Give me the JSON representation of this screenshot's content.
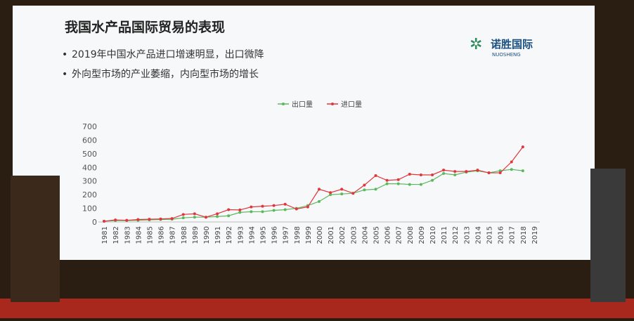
{
  "slide": {
    "title": "我国水产品国际贸易的表现",
    "bullets": [
      "2019年中国水产品进口增速明显，出口微降",
      "外向型市场的产业萎缩，内向型市场的增长"
    ],
    "logo": "诺胜国际",
    "logo_sub": "NUOSHENG"
  },
  "chart_data": {
    "type": "line",
    "categories": [
      "1981",
      "1982",
      "1983",
      "1984",
      "1985",
      "1986",
      "1987",
      "1988",
      "1989",
      "1990",
      "1991",
      "1992",
      "1993",
      "1994",
      "1995",
      "1996",
      "1997",
      "1998",
      "1999",
      "2000",
      "2001",
      "2002",
      "2003",
      "2004",
      "2005",
      "2006",
      "2007",
      "2008",
      "2009",
      "2010",
      "2011",
      "2012",
      "2013",
      "2014",
      "2015",
      "2016",
      "2017",
      "2018",
      "2019"
    ],
    "series": [
      {
        "name": "出口量",
        "color": "#5cb85c",
        "values": [
          5,
          10,
          10,
          12,
          15,
          18,
          20,
          30,
          35,
          35,
          40,
          45,
          70,
          75,
          75,
          85,
          90,
          100,
          120,
          150,
          200,
          205,
          210,
          235,
          240,
          280,
          280,
          275,
          275,
          305,
          355,
          345,
          365,
          375,
          360,
          375,
          385,
          375,
          null
        ]
      },
      {
        "name": "进口量",
        "color": "#e0363c",
        "values": [
          5,
          15,
          12,
          18,
          20,
          22,
          25,
          55,
          60,
          35,
          60,
          90,
          88,
          110,
          115,
          120,
          130,
          95,
          110,
          240,
          215,
          240,
          210,
          270,
          340,
          305,
          310,
          350,
          345,
          345,
          380,
          370,
          370,
          380,
          360,
          360,
          440,
          550,
          null
        ]
      }
    ],
    "ylim": [
      0,
      700
    ],
    "yticks": [
      0,
      100,
      200,
      300,
      400,
      500,
      600,
      700
    ],
    "legend": "top"
  }
}
